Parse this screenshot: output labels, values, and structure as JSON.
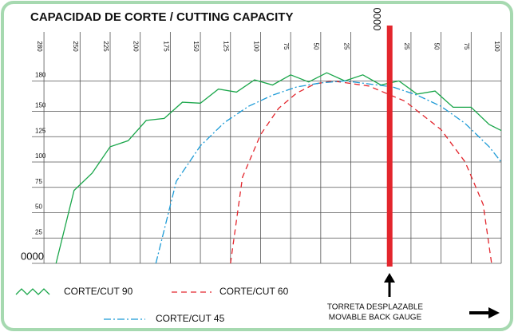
{
  "chart_data": {
    "type": "line",
    "title": "CAPACIDAD DE CORTE / CUTTING CAPACITY",
    "annotation": [
      "TORRETA DESPLAZABLE",
      "MOVABLE BACK GAUGE"
    ],
    "xlim": [
      -290,
      100
    ],
    "ylim": [
      0,
      195
    ],
    "xticks": [
      {
        "value": -280,
        "label": "280"
      },
      {
        "value": -250,
        "label": "250"
      },
      {
        "value": -225,
        "label": "225"
      },
      {
        "value": -200,
        "label": "200"
      },
      {
        "value": -175,
        "label": "175"
      },
      {
        "value": -150,
        "label": "150"
      },
      {
        "value": -125,
        "label": "125"
      },
      {
        "value": -100,
        "label": "100"
      },
      {
        "value": -75,
        "label": "75"
      },
      {
        "value": -50,
        "label": "50"
      },
      {
        "value": -25,
        "label": "25"
      },
      {
        "value": 0,
        "label": "0000"
      },
      25,
      50,
      75,
      100
    ],
    "yticks": [
      {
        "value": 0,
        "label": "0000"
      },
      25,
      50,
      75,
      100,
      125,
      150,
      180
    ],
    "grid": true,
    "series": [
      {
        "name": "CORTE/CUT 90",
        "color": "#1aa64a",
        "linestyle": "zigzag",
        "x": [
          -270,
          -255,
          -240,
          -225,
          -210,
          -195,
          -180,
          -165,
          -150,
          -135,
          -120,
          -105,
          -90,
          -75,
          -60,
          -45,
          -30,
          -15,
          0,
          15,
          30,
          45,
          60,
          75,
          90,
          100
        ],
        "values": [
          0,
          72,
          89,
          115,
          121,
          141,
          143,
          159,
          158,
          172,
          169,
          181,
          176,
          186,
          179,
          188,
          180,
          186,
          176,
          180,
          167,
          170,
          154,
          154,
          137,
          131
        ]
      },
      {
        "name": "CORTE/CUT 60",
        "color": "#e3262d",
        "linestyle": "dashed",
        "x": [
          -125,
          -115,
          -100,
          -85,
          -70,
          -55,
          -40,
          -10,
          20,
          50,
          70,
          85,
          92
        ],
        "values": [
          0,
          85,
          127,
          153,
          168,
          177,
          180,
          175,
          160,
          132,
          100,
          58,
          0
        ]
      },
      {
        "name": "CORTE/CUT 45",
        "color": "#1b9ad6",
        "linestyle": "dashdot",
        "x": [
          -187,
          -170,
          -150,
          -130,
          -110,
          -90,
          -70,
          -50,
          -30,
          10,
          30,
          50,
          70,
          90,
          100
        ],
        "values": [
          0,
          81,
          116,
          139,
          155,
          166,
          174,
          178,
          180,
          174,
          166,
          155,
          138,
          115,
          100
        ]
      }
    ]
  }
}
